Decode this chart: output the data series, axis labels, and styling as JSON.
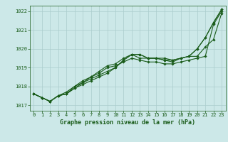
{
  "title": "Graphe pression niveau de la mer (hPa)",
  "bg_color": "#cce8e8",
  "grid_color": "#aacccc",
  "line_color": "#1a5c1a",
  "marker_color": "#1a5c1a",
  "xlim": [
    -0.5,
    23.5
  ],
  "ylim": [
    1016.7,
    1022.3
  ],
  "yticks": [
    1017,
    1018,
    1019,
    1020,
    1021,
    1022
  ],
  "xticks": [
    0,
    1,
    2,
    3,
    4,
    5,
    6,
    7,
    8,
    9,
    10,
    11,
    12,
    13,
    14,
    15,
    16,
    17,
    18,
    19,
    20,
    21,
    22,
    23
  ],
  "line1": [
    1017.6,
    1017.4,
    1017.2,
    1017.5,
    1017.6,
    1017.9,
    1018.1,
    1018.3,
    1018.5,
    1018.7,
    1019.0,
    1019.4,
    1019.7,
    1019.7,
    1019.5,
    1019.5,
    1019.4,
    1019.3,
    1019.5,
    1019.6,
    1020.0,
    1020.6,
    1021.4,
    1022.1
  ],
  "line2": [
    1017.6,
    1017.4,
    1017.2,
    1017.5,
    1017.6,
    1017.9,
    1018.2,
    1018.4,
    1018.6,
    1018.8,
    1019.0,
    1019.4,
    1019.7,
    1019.7,
    1019.5,
    1019.5,
    1019.4,
    1019.4,
    1019.5,
    1019.6,
    1020.0,
    1020.6,
    1021.4,
    1022.1
  ],
  "line3": [
    1017.6,
    1017.4,
    1017.2,
    1017.5,
    1017.6,
    1018.0,
    1018.2,
    1018.5,
    1018.7,
    1019.0,
    1019.1,
    1019.3,
    1019.5,
    1019.4,
    1019.3,
    1019.3,
    1019.2,
    1019.2,
    1019.3,
    1019.4,
    1019.5,
    1019.6,
    1021.3,
    1022.0
  ],
  "line4": [
    1017.6,
    1017.4,
    1017.2,
    1017.5,
    1017.7,
    1018.0,
    1018.3,
    1018.5,
    1018.8,
    1019.1,
    1019.2,
    1019.5,
    1019.7,
    1019.5,
    1019.5,
    1019.5,
    1019.5,
    1019.4,
    1019.5,
    1019.6,
    1019.6,
    1020.1,
    1020.5,
    1021.9
  ],
  "tick_fontsize": 5,
  "label_fontsize": 6,
  "linewidth": 0.8,
  "markersize": 1.8
}
